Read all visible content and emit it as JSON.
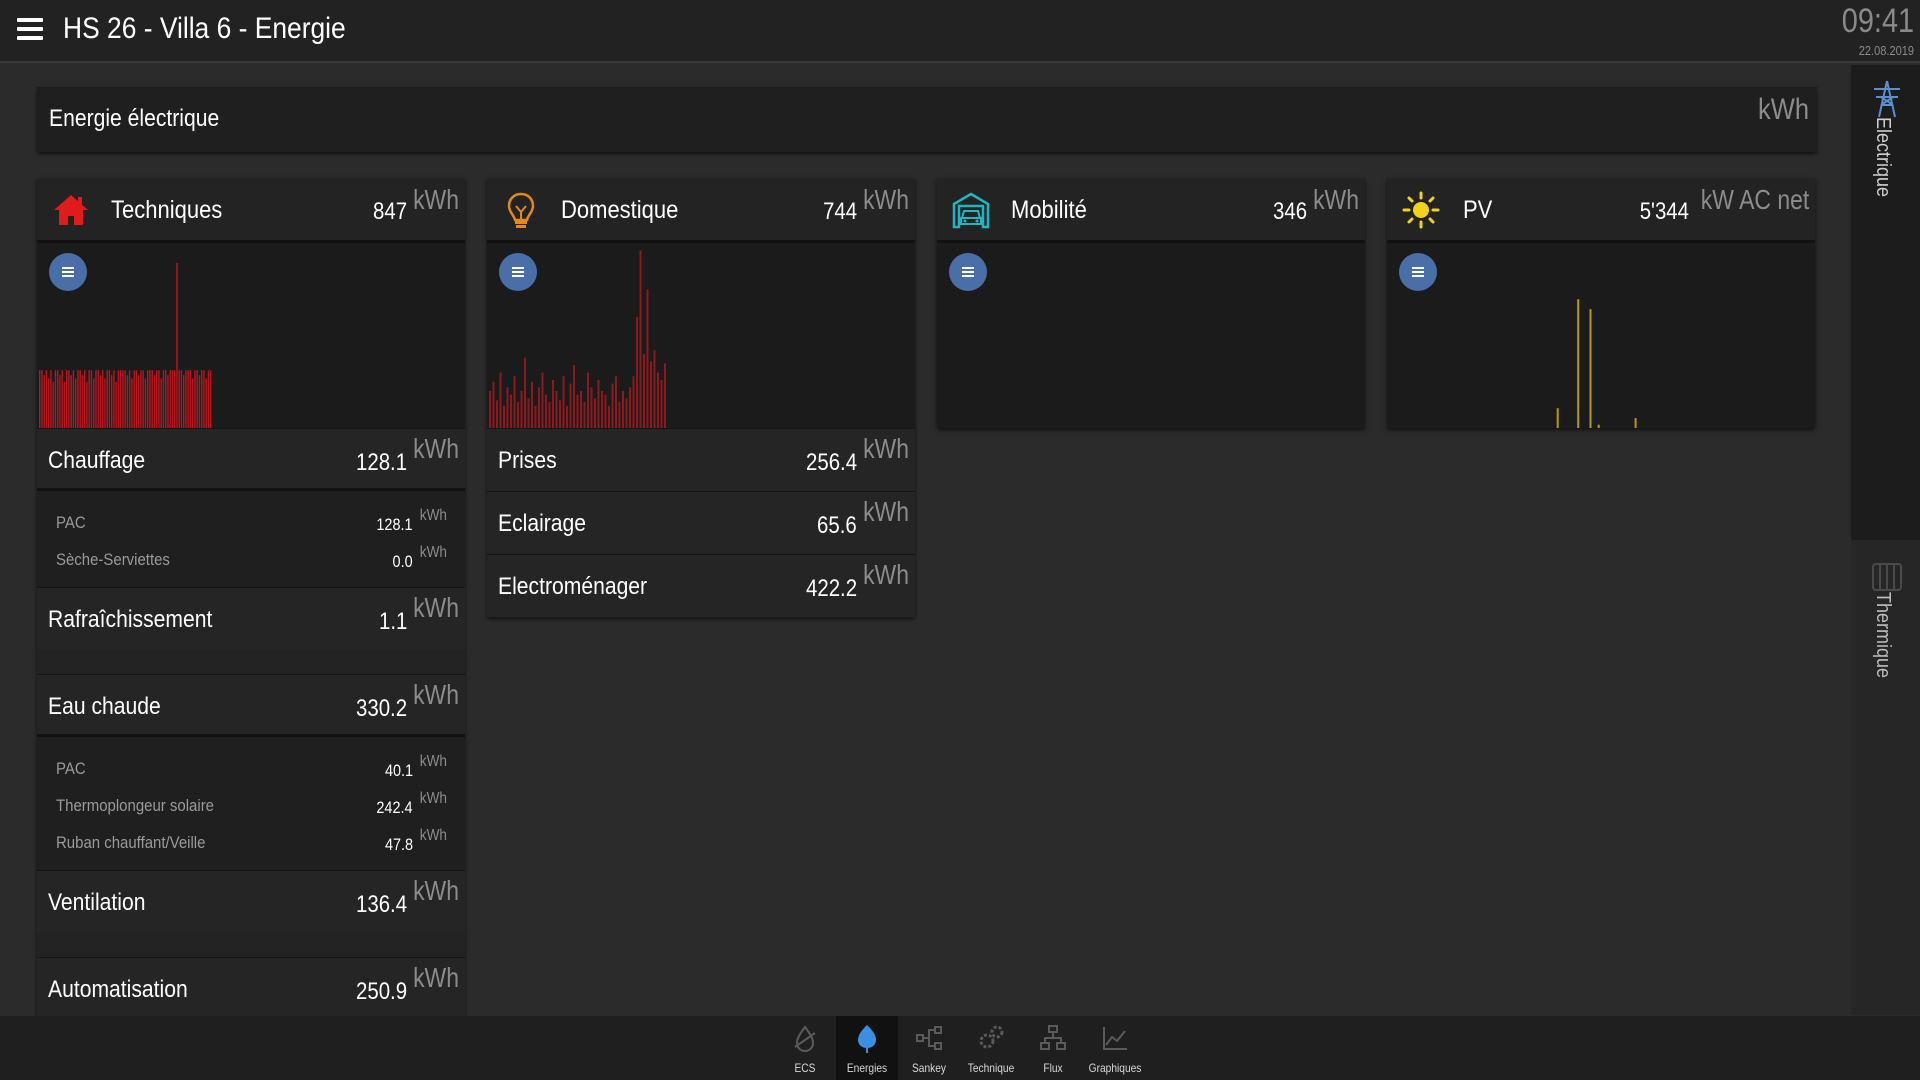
{
  "header": {
    "title": "HS 26 - Villa 6 - Energie",
    "time": "09:41",
    "date": "22.08.2019"
  },
  "summary": {
    "label": "Energie électrique",
    "unit": "kWh"
  },
  "side_tabs": [
    {
      "label": "Electrique",
      "icon": "pylon-icon",
      "active": true
    },
    {
      "label": "Thermique",
      "icon": "heater-icon",
      "active": false
    }
  ],
  "cards": {
    "techniques": {
      "title": "Techniques",
      "value": "847",
      "unit": "kWh",
      "icon": "house-icon",
      "color": "#e01b1b",
      "rows": {
        "chauffage": {
          "label": "Chauffage",
          "value": "128.1",
          "unit": "kWh"
        },
        "chauffage_sub": [
          {
            "label": "PAC",
            "value": "128.1",
            "unit": "kWh"
          },
          {
            "label": "Sèche-Serviettes",
            "value": "0.0",
            "unit": "kWh"
          }
        ],
        "rafraichissement": {
          "label": "Rafraîchissement",
          "value": "1.1",
          "unit": "kWh"
        },
        "eau_chaude": {
          "label": "Eau chaude",
          "value": "330.2",
          "unit": "kWh"
        },
        "eau_chaude_sub": [
          {
            "label": "PAC",
            "value": "40.1",
            "unit": "kWh"
          },
          {
            "label": "Thermoplongeur solaire",
            "value": "242.4",
            "unit": "kWh"
          },
          {
            "label": "Ruban chauffant/Veille",
            "value": "47.8",
            "unit": "kWh"
          }
        ],
        "ventilation": {
          "label": "Ventilation",
          "value": "136.4",
          "unit": "kWh"
        },
        "automatisation": {
          "label": "Automatisation",
          "value": "250.9",
          "unit": "kWh"
        }
      }
    },
    "domestique": {
      "title": "Domestique",
      "value": "744",
      "unit": "kWh",
      "icon": "bulb-icon",
      "color": "#e08a1b",
      "rows": {
        "prises": {
          "label": "Prises",
          "value": "256.4",
          "unit": "kWh"
        },
        "eclairage": {
          "label": "Eclairage",
          "value": "65.6",
          "unit": "kWh"
        },
        "electromenager": {
          "label": "Electroménager",
          "value": "422.2",
          "unit": "kWh"
        }
      }
    },
    "mobilite": {
      "title": "Mobilité",
      "value": "346",
      "unit": "kWh",
      "icon": "garage-car-icon",
      "color": "#21b5c4"
    },
    "pv": {
      "title": "PV",
      "value": "5'344",
      "unit": "kW AC net",
      "icon": "sun-icon",
      "color": "#f2d21b"
    }
  },
  "bottom_nav": [
    {
      "label": "ECS",
      "icon": "ecs-icon",
      "active": false
    },
    {
      "label": "Energies",
      "icon": "energies-drop-icon",
      "active": true
    },
    {
      "label": "Sankey",
      "icon": "sankey-icon",
      "active": false
    },
    {
      "label": "Technique",
      "icon": "gears-icon",
      "active": false
    },
    {
      "label": "Flux",
      "icon": "flux-icon",
      "active": false
    },
    {
      "label": "Graphiques",
      "icon": "graph-icon",
      "active": false
    }
  ],
  "colors": {
    "bars_techniques": "#b8161e",
    "bars_domestique": "#8b1a1f",
    "bars_pv": "#b59a15",
    "button_blue": "#4a6fa8"
  },
  "chart_bars": {
    "techniques": [
      35,
      35,
      32,
      35,
      30,
      35,
      28,
      35,
      35,
      32,
      35,
      28,
      35,
      35,
      32,
      35,
      30,
      35,
      35,
      32,
      35,
      28,
      35,
      35,
      30,
      35,
      35,
      32,
      35,
      30,
      35,
      35,
      32,
      35,
      28,
      35,
      35,
      35,
      35,
      32,
      35,
      30,
      35,
      35,
      32,
      35,
      35,
      30,
      35,
      35,
      35,
      32,
      35,
      35,
      30,
      35,
      35,
      32,
      35,
      35,
      35,
      100,
      35,
      35,
      32,
      35,
      35,
      35,
      30,
      35,
      35,
      32,
      35,
      35,
      30,
      35,
      35
    ],
    "domestique": [
      20,
      25,
      15,
      30,
      12,
      22,
      18,
      28,
      14,
      20,
      38,
      16,
      25,
      12,
      22,
      30,
      18,
      14,
      26,
      20,
      15,
      28,
      12,
      24,
      34,
      18,
      20,
      14,
      30,
      22,
      16,
      26,
      20,
      18,
      12,
      24,
      28,
      14,
      20,
      16,
      22,
      28,
      60,
      96,
      40,
      75,
      36,
      42,
      30,
      26,
      35
    ],
    "pv": [
      0,
      0,
      0,
      0,
      0,
      0,
      0,
      0,
      0,
      0,
      0,
      0,
      0,
      0,
      0,
      0,
      0,
      12,
      0,
      0,
      0,
      0,
      78,
      0,
      0,
      72,
      0,
      2,
      0,
      0,
      0,
      0,
      0,
      0,
      0,
      0,
      6,
      0,
      0,
      0,
      0,
      0,
      0,
      0,
      0,
      0,
      0,
      0,
      0,
      0,
      0,
      0,
      0,
      0,
      0,
      0,
      0,
      0,
      0,
      0,
      0,
      0,
      0,
      0,
      0,
      0,
      0,
      0,
      0,
      0,
      0,
      0,
      0,
      0,
      0,
      0,
      0,
      0,
      0,
      0,
      0
    ]
  }
}
